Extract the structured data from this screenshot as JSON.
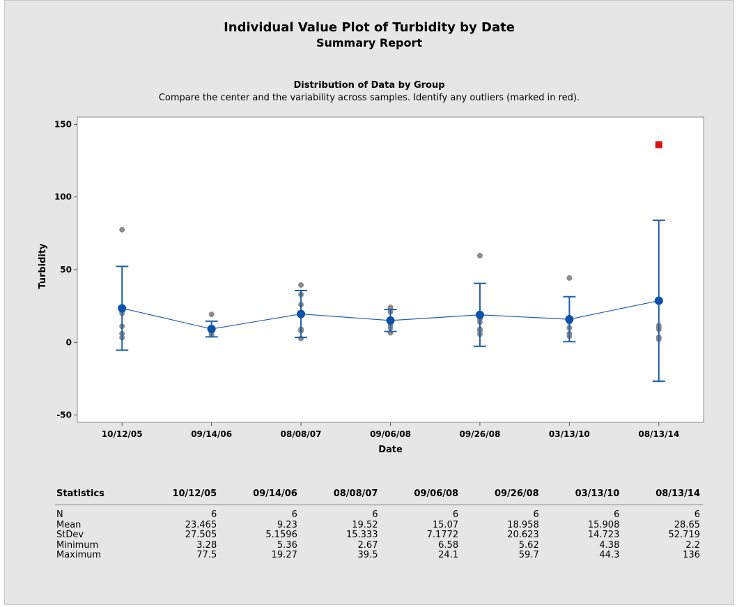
{
  "report": {
    "title": "Individual Value Plot of Turbidity by Date",
    "subtitle": "Summary Report",
    "section_title": "Distribution of Data by Group",
    "section_subtitle": "Compare the center and the variability across samples. Identify any outliers (marked in red)."
  },
  "colors": {
    "background": "#e6e6e6",
    "mean_line": "#1f5faa",
    "mean_marker": "#0a52a8",
    "data_point": "#8c8c8c",
    "outlier": "#dd1111"
  },
  "chart_data": {
    "type": "scatter",
    "xlabel": "Date",
    "ylabel": "Turbidity",
    "ylim": [
      -55,
      155
    ],
    "yticks": [
      -50,
      0,
      50,
      100,
      150
    ],
    "grid": false,
    "categories": [
      "10/12/05",
      "09/14/06",
      "08/08/07",
      "09/06/08",
      "09/26/08",
      "03/13/10",
      "08/13/14"
    ],
    "points": [
      [
        77.5,
        22,
        20,
        11,
        6,
        3.28
      ],
      [
        19.27,
        9,
        8,
        6.5,
        6,
        5.36
      ],
      [
        39.5,
        33,
        26,
        9,
        8,
        2.67
      ],
      [
        24.1,
        21,
        16,
        12,
        10,
        6.58
      ],
      [
        59.7,
        16,
        14,
        9,
        8,
        5.62
      ],
      [
        44.3,
        17,
        14,
        10,
        6,
        4.38
      ],
      [
        11.5,
        10,
        9,
        3.5,
        2.2
      ]
    ],
    "outliers": [
      {
        "category": "08/13/14",
        "value": 136
      }
    ],
    "means": [
      23.465,
      9.23,
      19.52,
      15.07,
      18.958,
      15.908,
      28.65
    ],
    "interval_lower": [
      -5.4,
      3.8,
      3.4,
      7.5,
      -2.7,
      0.5,
      -26.7
    ],
    "interval_upper": [
      52.3,
      14.6,
      35.6,
      22.6,
      40.6,
      31.4,
      84.0
    ]
  },
  "statistics": {
    "header": "Statistics",
    "columns": [
      "10/12/05",
      "09/14/06",
      "08/08/07",
      "09/06/08",
      "09/26/08",
      "03/13/10",
      "08/13/14"
    ],
    "rows": [
      {
        "label": "N",
        "values": [
          "6",
          "6",
          "6",
          "6",
          "6",
          "6",
          "6"
        ]
      },
      {
        "label": "Mean",
        "values": [
          "23.465",
          "9.23",
          "19.52",
          "15.07",
          "18.958",
          "15.908",
          "28.65"
        ]
      },
      {
        "label": "StDev",
        "values": [
          "27.505",
          "5.1596",
          "15.333",
          "7.1772",
          "20.623",
          "14.723",
          "52.719"
        ]
      },
      {
        "label": "Minimum",
        "values": [
          "3.28",
          "5.36",
          "2.67",
          "6.58",
          "5.62",
          "4.38",
          "2.2"
        ]
      },
      {
        "label": "Maximum",
        "values": [
          "77.5",
          "19.27",
          "39.5",
          "24.1",
          "59.7",
          "44.3",
          "136"
        ]
      }
    ]
  }
}
